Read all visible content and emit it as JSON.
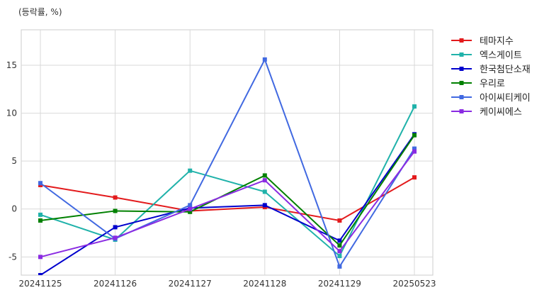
{
  "chart_data": {
    "type": "line",
    "unit_label": "(등락률, %)",
    "categories": [
      "20241125",
      "20241126",
      "20241127",
      "20241128",
      "20241129",
      "20250523"
    ],
    "ylim": [
      -6.9,
      18.7
    ],
    "yticks": [
      -5,
      0,
      5,
      10,
      15
    ],
    "grid": true,
    "legend_position": "right",
    "series": [
      {
        "name": "테마지수",
        "color": "#e31a1c",
        "values": [
          2.5,
          1.2,
          -0.2,
          0.2,
          -1.2,
          3.3
        ]
      },
      {
        "name": "엑스게이트",
        "color": "#20b2aa",
        "values": [
          -0.6,
          -3.2,
          4.0,
          1.8,
          -4.9,
          10.7
        ]
      },
      {
        "name": "한국첨단소재",
        "color": "#0000cd",
        "values": [
          -6.9,
          -1.9,
          0.1,
          0.4,
          -3.3,
          7.8
        ]
      },
      {
        "name": "우리로",
        "color": "#008000",
        "values": [
          -1.2,
          -0.2,
          -0.3,
          3.5,
          -3.8,
          7.7
        ]
      },
      {
        "name": "아이씨티케이",
        "color": "#4169e1",
        "values": [
          2.7,
          -3.1,
          0.4,
          15.6,
          -6.0,
          6.3
        ]
      },
      {
        "name": "케이씨에스",
        "color": "#8a2be2",
        "values": [
          -5.0,
          -3.0,
          0.0,
          3.0,
          -4.4,
          6.0
        ]
      }
    ]
  }
}
